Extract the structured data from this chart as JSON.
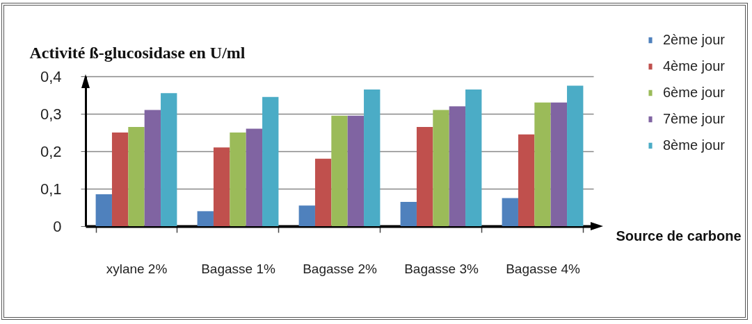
{
  "chart_data": {
    "type": "bar",
    "ylabel": "Activité ß-glucosidase en U/ml",
    "xlabel": "Source de carbone",
    "categories": [
      "xylane 2%",
      "Bagasse 1%",
      "Bagasse 2%",
      "Bagasse 3%",
      "Bagasse 4%"
    ],
    "series": [
      {
        "name": "2ème jour",
        "color": "#4f81bd",
        "values": [
          0.085,
          0.04,
          0.055,
          0.065,
          0.075
        ]
      },
      {
        "name": "4ème jour",
        "color": "#c0504d",
        "values": [
          0.25,
          0.21,
          0.18,
          0.265,
          0.245
        ]
      },
      {
        "name": "6ème jour",
        "color": "#9bbb59",
        "values": [
          0.265,
          0.25,
          0.295,
          0.31,
          0.33
        ]
      },
      {
        "name": "7ème jour",
        "color": "#8064a2",
        "values": [
          0.31,
          0.26,
          0.295,
          0.32,
          0.33
        ]
      },
      {
        "name": "8ème jour",
        "color": "#4bacc6",
        "values": [
          0.355,
          0.345,
          0.365,
          0.365,
          0.375
        ]
      }
    ],
    "ylim": [
      0,
      0.4
    ],
    "yticks": [
      0,
      {
        "value": 0.1,
        "label": "0,1"
      },
      {
        "value": 0.2,
        "label": "0,2"
      },
      {
        "value": 0.3,
        "label": "0,3"
      },
      {
        "value": 0.4,
        "label": "0,4"
      }
    ],
    "grid": "y",
    "legend": "top right"
  }
}
